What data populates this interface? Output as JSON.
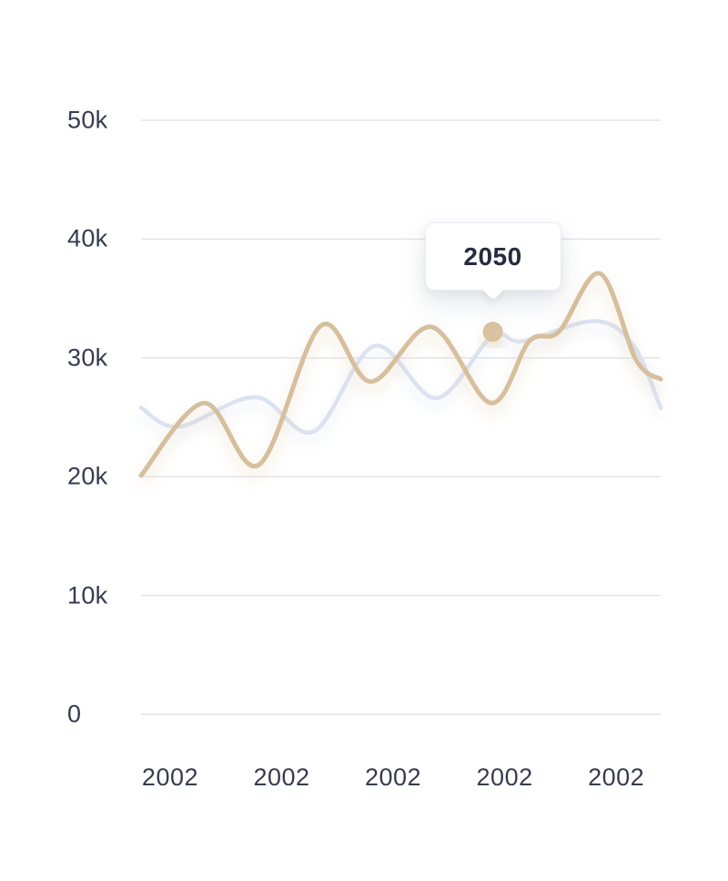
{
  "page": {
    "background": "#ffffff"
  },
  "chart_data": {
    "type": "line",
    "title": "",
    "legend": "none",
    "grid": "horizontal-only",
    "ylim": [
      0,
      50000
    ],
    "y_ticks": [
      {
        "label": "50k",
        "value": 50000
      },
      {
        "label": "40k",
        "value": 40000
      },
      {
        "label": "30k",
        "value": 30000
      },
      {
        "label": "20k",
        "value": 20000
      },
      {
        "label": "10k",
        "value": 10000
      },
      {
        "label": "0",
        "value": 0
      }
    ],
    "x_tick_labels": [
      "2002",
      "2002",
      "2002",
      "2002",
      "2002"
    ],
    "series": [
      {
        "name": "secondary-gray",
        "color": "#dce2f0",
        "stroke_width": 4.5,
        "shadow_color": "#b8c3de",
        "points": [
          {
            "t": 0.0,
            "v": 25800
          },
          {
            "t": 0.073,
            "v": 24200
          },
          {
            "t": 0.22,
            "v": 26700
          },
          {
            "t": 0.332,
            "v": 23800
          },
          {
            "t": 0.449,
            "v": 31000
          },
          {
            "t": 0.568,
            "v": 26600
          },
          {
            "t": 0.675,
            "v": 31800
          },
          {
            "t": 0.734,
            "v": 31400
          },
          {
            "t": 0.874,
            "v": 33100
          },
          {
            "t": 0.948,
            "v": 31000
          },
          {
            "t": 1.0,
            "v": 25800
          }
        ]
      },
      {
        "name": "primary-tan",
        "color": "#d5bf9d",
        "stroke_width": 5,
        "shadow_color": "#d9b98a",
        "points": [
          {
            "t": 0.0,
            "v": 20100
          },
          {
            "t": 0.121,
            "v": 26200
          },
          {
            "t": 0.227,
            "v": 21000
          },
          {
            "t": 0.346,
            "v": 32700
          },
          {
            "t": 0.442,
            "v": 28000
          },
          {
            "t": 0.559,
            "v": 32600
          },
          {
            "t": 0.673,
            "v": 26200
          },
          {
            "t": 0.747,
            "v": 31400
          },
          {
            "t": 0.804,
            "v": 32200
          },
          {
            "t": 0.883,
            "v": 37100
          },
          {
            "t": 0.953,
            "v": 29800
          },
          {
            "t": 1.0,
            "v": 28200
          }
        ]
      }
    ],
    "highlight_marker": {
      "t": 0.677,
      "v": 32200,
      "color": "#d9c2a1",
      "radius": 11
    },
    "tooltip": {
      "label": "2050"
    }
  },
  "colors": {
    "gridline": "#e2e3e7",
    "axis_text": "#353c4e",
    "tooltip_text": "#252c41"
  }
}
